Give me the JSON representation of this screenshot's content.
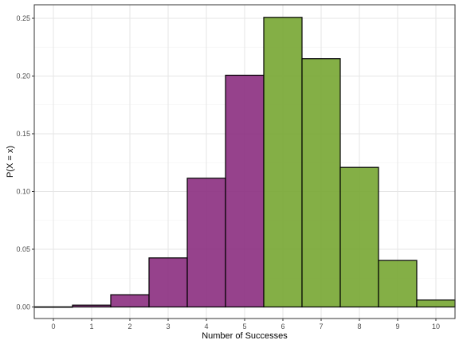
{
  "chart_data": {
    "type": "bar",
    "xlabel": "Number of Successes",
    "ylabel": "P(X = x)",
    "x": [
      0,
      1,
      2,
      3,
      4,
      5,
      6,
      7,
      8,
      9,
      10
    ],
    "values": [
      0.0001,
      0.0016,
      0.0106,
      0.0425,
      0.1115,
      0.2007,
      0.2508,
      0.215,
      0.1209,
      0.0403,
      0.006
    ],
    "groups": [
      "low",
      "low",
      "low",
      "low",
      "low",
      "low",
      "high",
      "high",
      "high",
      "high",
      "high"
    ],
    "colors": {
      "low": "#8b2e7f",
      "high": "#77a632"
    },
    "xlim": [
      -0.5,
      10.5
    ],
    "ylim": [
      0,
      0.25
    ],
    "yticks": [
      "0.00",
      "0.05",
      "0.10",
      "0.15",
      "0.20",
      "0.25"
    ],
    "xticks": [
      "0",
      "1",
      "2",
      "3",
      "4",
      "5",
      "6",
      "7",
      "8",
      "9",
      "10"
    ],
    "grid": true,
    "legend": "none"
  }
}
